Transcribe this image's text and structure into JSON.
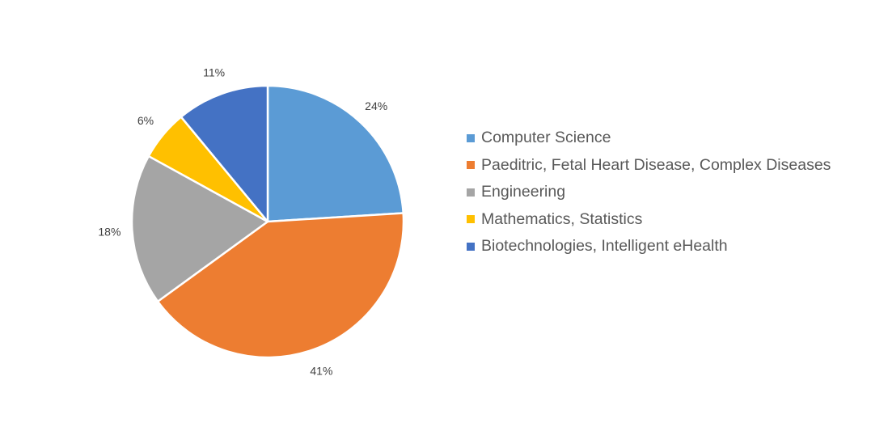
{
  "chart_data": {
    "type": "pie",
    "title": "",
    "slices": [
      {
        "name": "Computer Science",
        "value": 24,
        "label": "24%",
        "color": "#5B9BD5"
      },
      {
        "name": "Paeditric, Fetal Heart Disease, Complex Diseases",
        "value": 41,
        "label": "41%",
        "color": "#ED7D31"
      },
      {
        "name": "Engineering",
        "value": 18,
        "label": "18%",
        "color": "#A5A5A5"
      },
      {
        "name": "Mathematics, Statistics",
        "value": 6,
        "label": "6%",
        "color": "#FFC000"
      },
      {
        "name": "Biotechnologies, Intelligent eHealth",
        "value": 11,
        "label": "11%",
        "color": "#4472C4"
      }
    ],
    "start_angle": "12 o'clock",
    "direction": "clockwise",
    "legend_position": "right"
  }
}
